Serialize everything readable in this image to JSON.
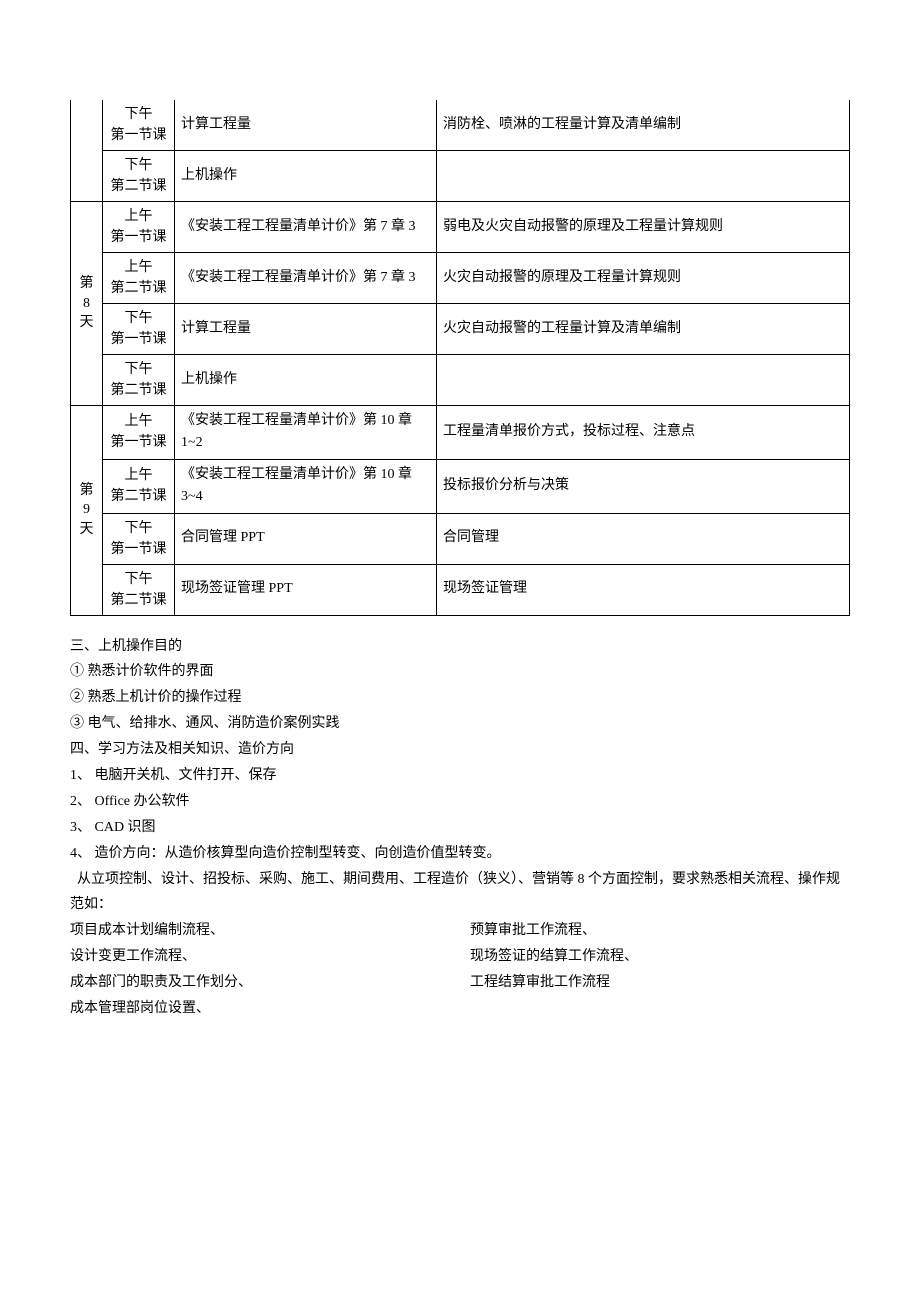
{
  "tableRows": [
    {
      "day": "",
      "dayRowspan": 0,
      "period": "下午 第一节课",
      "material": "计算工程量",
      "content": "消防栓、喷淋的工程量计算及清单编制",
      "noTop": true
    },
    {
      "day": "",
      "dayRowspan": 0,
      "period": "下午 第二节课",
      "material": "上机操作",
      "content": ""
    },
    {
      "day": "第8天",
      "dayRowspan": 4,
      "period": "上午 第一节课",
      "material": "《安装工程工程量清单计价》第 7 章 3",
      "content": "弱电及火灾自动报警的原理及工程量计算规则"
    },
    {
      "day": "",
      "dayRowspan": 0,
      "period": "上午 第二节课",
      "material": "《安装工程工程量清单计价》第 7 章 3",
      "content": "火灾自动报警的原理及工程量计算规则"
    },
    {
      "day": "",
      "dayRowspan": 0,
      "period": "下午 第一节课",
      "material": "计算工程量",
      "content": "火灾自动报警的工程量计算及清单编制"
    },
    {
      "day": "",
      "dayRowspan": 0,
      "period": "下午 第二节课",
      "material": "上机操作",
      "content": ""
    },
    {
      "day": "第9天",
      "dayRowspan": 4,
      "period": "上午 第一节课",
      "material": "《安装工程工程量清单计价》第 10 章 1~2",
      "content": "工程量清单报价方式，投标过程、注意点"
    },
    {
      "day": "",
      "dayRowspan": 0,
      "period": "上午 第二节课",
      "material": "《安装工程工程量清单计价》第 10 章 3~4",
      "content": "投标报价分析与决策"
    },
    {
      "day": "",
      "dayRowspan": 0,
      "period": "下午 第一节课",
      "material": "合同管理 PPT",
      "content": "合同管理"
    },
    {
      "day": "",
      "dayRowspan": 0,
      "period": "下午 第二节课",
      "material": "现场签证管理 PPT",
      "content": "现场签证管理"
    }
  ],
  "section3": {
    "title": "三、上机操作目的",
    "items": [
      "① 熟悉计价软件的界面",
      "② 熟悉上机计价的操作过程",
      "③ 电气、给排水、通风、消防造价案例实践"
    ]
  },
  "section4": {
    "title": "四、学习方法及相关知识、造价方向",
    "items": [
      "1、 电脑开关机、文件打开、保存",
      "2、 Office 办公软件",
      "3、 CAD 识图",
      "4、 造价方向：从造价核算型向造价控制型转变、向创造价值型转变。"
    ],
    "para1": "  从立项控制、设计、招投标、采购、施工、期间费用、工程造价（狭义）、营销等 8 个方面控制，要求熟悉相关流程、操作规范如：",
    "leftList": [
      "项目成本计划编制流程、",
      "设计变更工作流程、",
      "成本部门的职责及工作划分、",
      "成本管理部岗位设置、"
    ],
    "rightList": [
      "预算审批工作流程、",
      "现场签证的结算工作流程、",
      "工程结算审批工作流程"
    ]
  }
}
